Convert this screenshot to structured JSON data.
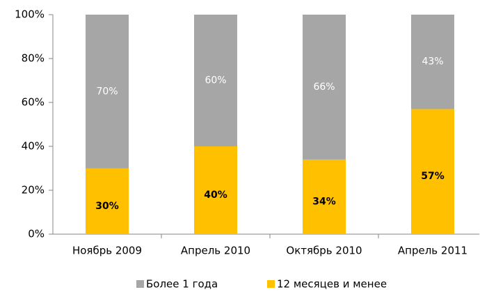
{
  "chart_data": {
    "type": "bar",
    "stacked": true,
    "categories": [
      "Ноябрь 2009",
      "Апрель 2010",
      "Октябрь 2010",
      "Апрель 2011"
    ],
    "series": [
      {
        "name": "12 месяцев и менее",
        "color": "#ffc000",
        "values": [
          30,
          40,
          34,
          57
        ],
        "value_labels": [
          "30%",
          "40%",
          "34%",
          "57%"
        ]
      },
      {
        "name": "Более 1 года",
        "color": "#a6a6a6",
        "values": [
          70,
          60,
          66,
          43
        ],
        "value_labels": [
          "70%",
          "60%",
          "66%",
          "43%"
        ]
      }
    ],
    "ylim": [
      0,
      100
    ],
    "yticks": [
      {
        "value": 0,
        "label": "0%"
      },
      {
        "value": 20,
        "label": "20%"
      },
      {
        "value": 40,
        "label": "40%"
      },
      {
        "value": 60,
        "label": "60%"
      },
      {
        "value": 80,
        "label": "80%"
      },
      {
        "value": 100,
        "label": "100%"
      }
    ],
    "grid": false
  }
}
